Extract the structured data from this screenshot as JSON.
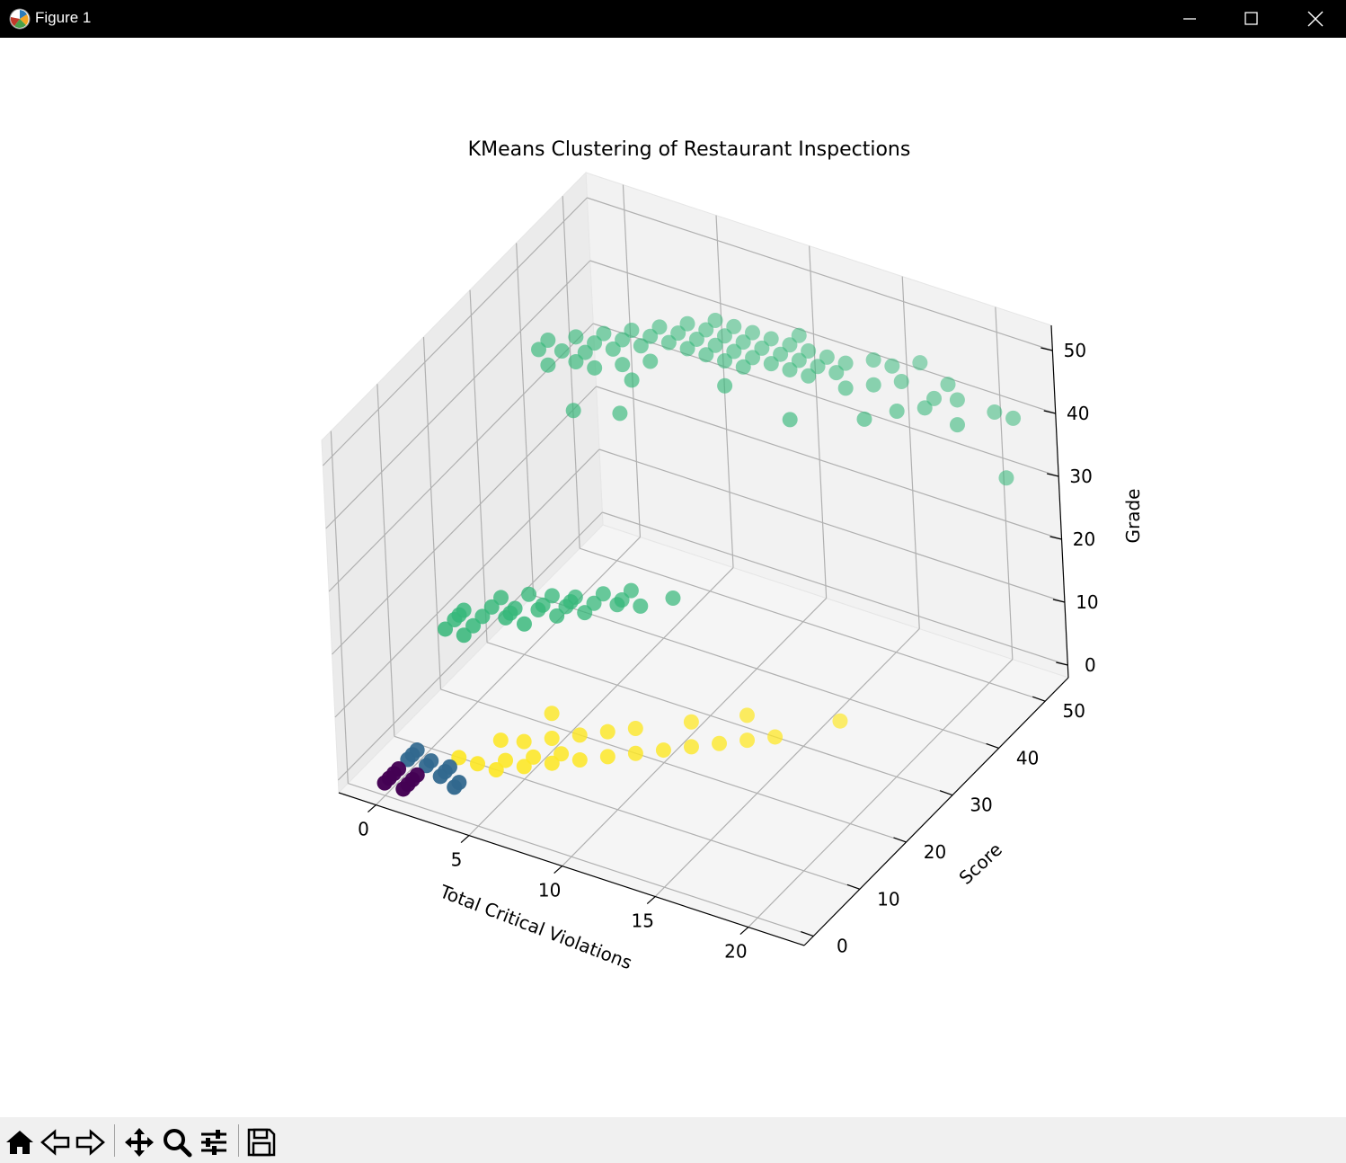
{
  "window": {
    "title": "Figure 1",
    "controls": [
      "minimize",
      "maximize",
      "close"
    ]
  },
  "toolbar": {
    "buttons": [
      {
        "name": "home",
        "icon": "home-icon"
      },
      {
        "name": "back",
        "icon": "arrow-left-icon"
      },
      {
        "name": "forward",
        "icon": "arrow-right-icon"
      },
      {
        "name": "pan",
        "icon": "move-icon"
      },
      {
        "name": "zoom",
        "icon": "magnifier-icon"
      },
      {
        "name": "configure-subplots",
        "icon": "sliders-icon"
      },
      {
        "name": "save",
        "icon": "floppy-disk-icon"
      }
    ]
  },
  "chart_data": {
    "type": "scatter",
    "projection": "3d",
    "title": "KMeans Clustering of Restaurant Inspections",
    "xlabel": "Total Critical Violations",
    "ylabel": "Score",
    "zlabel": "Grade",
    "xticks": [
      0,
      5,
      10,
      15,
      20
    ],
    "yticks": [
      0,
      10,
      20,
      30,
      40,
      50
    ],
    "zticks": [
      0,
      10,
      20,
      30,
      40,
      50
    ],
    "xlim": [
      -2,
      23
    ],
    "ylim": [
      -2,
      55
    ],
    "zlim": [
      -2,
      54
    ],
    "grid": true,
    "colors": {
      "cluster_0": "#440154",
      "cluster_1": "#31688e",
      "cluster_2": "#35b779",
      "cluster_3": "#fde725"
    },
    "series": [
      {
        "cluster": 0,
        "color": "#440154",
        "points": [
          [
            0,
            0,
            0
          ],
          [
            0,
            1,
            0
          ],
          [
            0,
            2,
            0
          ],
          [
            0,
            3,
            0
          ],
          [
            1,
            0,
            0
          ],
          [
            1,
            1,
            0
          ],
          [
            1,
            2,
            0
          ],
          [
            1,
            3,
            0
          ]
        ]
      },
      {
        "cluster": 1,
        "color": "#31688e",
        "points": [
          [
            0,
            5,
            0
          ],
          [
            0,
            6,
            0
          ],
          [
            0,
            7,
            0
          ],
          [
            1,
            5,
            0
          ],
          [
            1,
            6,
            0
          ],
          [
            2,
            4,
            0
          ],
          [
            2,
            5,
            0
          ],
          [
            2,
            6,
            0
          ],
          [
            3,
            4,
            0
          ],
          [
            3,
            3,
            0
          ]
        ]
      },
      {
        "cluster": 2,
        "color": "#35b779",
        "points": [
          [
            0,
            14,
            14
          ],
          [
            0,
            16,
            14
          ],
          [
            0,
            18,
            14
          ],
          [
            1,
            16,
            14
          ],
          [
            1,
            18,
            14
          ],
          [
            1,
            20,
            14
          ],
          [
            0,
            17,
            14
          ],
          [
            1,
            22,
            14
          ],
          [
            2,
            20,
            14
          ],
          [
            2,
            24,
            14
          ],
          [
            2,
            21,
            14
          ],
          [
            3,
            22,
            14
          ],
          [
            3,
            23,
            14
          ],
          [
            3,
            25,
            14
          ],
          [
            4,
            24,
            14
          ],
          [
            4,
            26,
            14
          ],
          [
            4,
            25,
            14
          ],
          [
            5,
            26,
            14
          ],
          [
            5,
            28,
            14
          ],
          [
            6,
            27,
            14
          ],
          [
            6,
            28,
            14
          ],
          [
            5,
            24,
            14
          ],
          [
            1,
            14,
            14
          ],
          [
            3,
            19,
            14
          ],
          [
            6,
            30,
            14
          ],
          [
            7,
            28,
            14
          ],
          [
            8,
            31,
            14
          ],
          [
            2,
            19,
            14
          ],
          [
            4,
            22,
            14
          ],
          [
            0,
            36,
            42
          ],
          [
            0,
            38,
            42
          ],
          [
            1,
            37,
            42
          ],
          [
            1,
            40,
            42
          ],
          [
            2,
            38,
            42
          ],
          [
            2,
            40,
            42
          ],
          [
            2,
            42,
            42
          ],
          [
            3,
            40,
            42
          ],
          [
            3,
            42,
            42
          ],
          [
            3,
            44,
            42
          ],
          [
            4,
            42,
            42
          ],
          [
            4,
            44,
            42
          ],
          [
            4,
            46,
            42
          ],
          [
            5,
            44,
            42
          ],
          [
            5,
            46,
            42
          ],
          [
            5,
            48,
            42
          ],
          [
            6,
            44,
            42
          ],
          [
            6,
            46,
            42
          ],
          [
            6,
            48,
            42
          ],
          [
            6,
            50,
            42
          ],
          [
            7,
            46,
            42
          ],
          [
            7,
            48,
            42
          ],
          [
            7,
            50,
            42
          ],
          [
            8,
            46,
            42
          ],
          [
            8,
            48,
            42
          ],
          [
            8,
            50,
            42
          ],
          [
            9,
            46,
            42
          ],
          [
            9,
            48,
            42
          ],
          [
            9,
            50,
            42
          ],
          [
            10,
            48,
            42
          ],
          [
            10,
            50,
            42
          ],
          [
            10,
            52,
            42
          ],
          [
            11,
            48,
            42
          ],
          [
            11,
            50,
            42
          ],
          [
            12,
            50,
            42
          ],
          [
            13,
            50,
            42
          ],
          [
            12,
            48,
            42
          ],
          [
            3,
            36,
            42
          ],
          [
            4,
            38,
            42
          ],
          [
            5,
            40,
            42
          ],
          [
            7,
            44,
            42
          ],
          [
            9,
            44,
            42
          ],
          [
            11,
            46,
            42
          ],
          [
            13,
            48,
            42
          ],
          [
            14,
            52,
            42
          ],
          [
            15,
            52,
            42
          ],
          [
            16,
            54,
            42
          ],
          [
            16,
            50,
            42
          ],
          [
            18,
            52,
            42
          ],
          [
            2,
            36,
            42
          ],
          [
            1,
            34,
            42
          ],
          [
            8,
            44,
            42
          ],
          [
            10,
            46,
            42
          ],
          [
            12,
            46,
            42
          ],
          [
            22,
            50,
            42
          ],
          [
            22,
            48,
            34
          ],
          [
            13,
            38,
            42
          ],
          [
            9,
            40,
            42
          ],
          [
            5,
            36,
            42
          ],
          [
            14,
            46,
            42
          ],
          [
            15,
            48,
            42
          ],
          [
            2,
            35,
            35
          ],
          [
            4,
            37,
            35
          ],
          [
            16,
            42,
            42
          ],
          [
            20,
            46,
            42
          ],
          [
            21,
            50,
            42
          ],
          [
            17,
            45,
            42
          ],
          [
            18,
            47,
            42
          ],
          [
            18,
            49,
            42
          ],
          [
            19,
            50,
            42
          ]
        ]
      },
      {
        "cluster": 3,
        "color": "#fde725",
        "points": [
          [
            2,
            8,
            0
          ],
          [
            3,
            8,
            0
          ],
          [
            4,
            8,
            0
          ],
          [
            4,
            10,
            0
          ],
          [
            5,
            10,
            0
          ],
          [
            5,
            12,
            0
          ],
          [
            6,
            12,
            0
          ],
          [
            6,
            14,
            0
          ],
          [
            7,
            14,
            0
          ],
          [
            8,
            16,
            0
          ],
          [
            9,
            18,
            0
          ],
          [
            10,
            20,
            0
          ],
          [
            11,
            22,
            0
          ],
          [
            12,
            24,
            0
          ],
          [
            13,
            26,
            0
          ],
          [
            4,
            14,
            0
          ],
          [
            7,
            20,
            0
          ],
          [
            14,
            28,
            0
          ],
          [
            3,
            13,
            0
          ],
          [
            5,
            16,
            0
          ],
          [
            6,
            18,
            0
          ],
          [
            8,
            22,
            0
          ],
          [
            10,
            26,
            0
          ],
          [
            12,
            30,
            0
          ],
          [
            4,
            20,
            0
          ],
          [
            16,
            34,
            0
          ]
        ]
      }
    ]
  }
}
